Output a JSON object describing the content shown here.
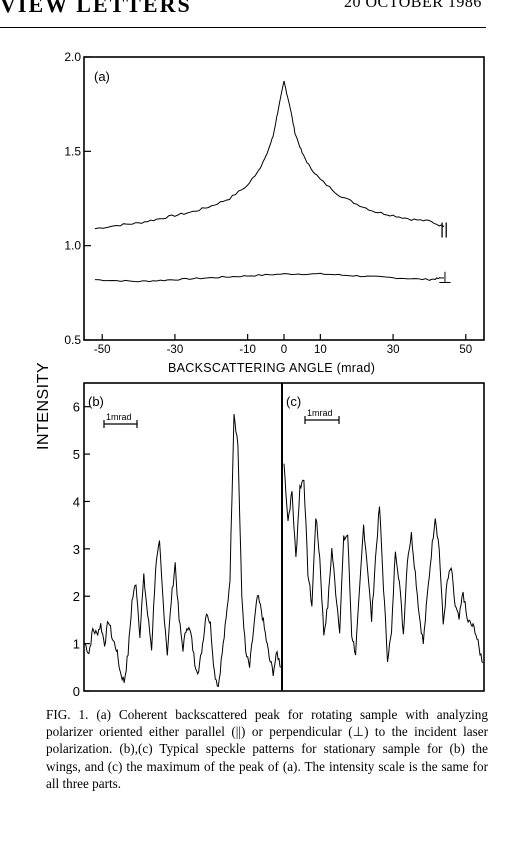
{
  "header": {
    "journal": "VIEW LETTERS",
    "date": "20 OCTOBER 1986"
  },
  "figure": {
    "shared_ylabel": "INTENSITY",
    "caption": "FIG. 1.  (a) Coherent backscattered peak for rotating sample with analyzing polarizer oriented either parallel (||) or perpendicular (⊥) to the incident laser polarization. (b),(c) Typical speckle patterns for stationary sample for (b) the wings, and (c) the maximum of the peak of (a). The intensity scale is the same for all three parts."
  },
  "chart_data": [
    {
      "panel": "(a)",
      "type": "line",
      "xlabel": "BACKSCATTERING  ANGLE (mrad)",
      "ylabel": "INTENSITY",
      "xlim": [
        -55,
        55
      ],
      "ylim": [
        0.5,
        2.0
      ],
      "xticks": [
        -50,
        -30,
        -10,
        0,
        10,
        30,
        50
      ],
      "yticks": [
        "0.5",
        "1.0",
        "1.5",
        "2.0"
      ],
      "series": [
        {
          "name": "||",
          "x": [
            -52,
            -45,
            -40,
            -35,
            -30,
            -25,
            -20,
            -15,
            -10,
            -7,
            -5,
            -3,
            -1.5,
            0,
            1.5,
            3,
            5,
            7,
            10,
            15,
            20,
            25,
            30,
            35,
            40,
            44
          ],
          "y": [
            1.09,
            1.11,
            1.12,
            1.14,
            1.16,
            1.18,
            1.21,
            1.25,
            1.32,
            1.4,
            1.47,
            1.58,
            1.73,
            1.87,
            1.75,
            1.6,
            1.49,
            1.42,
            1.35,
            1.27,
            1.22,
            1.18,
            1.16,
            1.14,
            1.13,
            1.1
          ]
        },
        {
          "name": "⊥",
          "x": [
            -52,
            -40,
            -30,
            -20,
            -10,
            0,
            10,
            20,
            30,
            40,
            44
          ],
          "y": [
            0.82,
            0.81,
            0.82,
            0.83,
            0.84,
            0.85,
            0.85,
            0.84,
            0.83,
            0.82,
            0.83
          ]
        }
      ]
    },
    {
      "panel": "(b)",
      "type": "line",
      "scale_bar": "1mrad",
      "ylim": [
        0,
        6.5
      ],
      "yticks": [
        "0",
        "1",
        "2",
        "3",
        "4",
        "5",
        "6"
      ],
      "series": [
        {
          "name": "",
          "x": [
            0,
            2,
            4,
            6,
            8,
            10,
            12,
            14,
            16,
            18,
            20,
            22,
            24,
            26,
            28,
            30,
            32,
            34,
            36,
            38,
            40,
            42,
            44,
            46,
            48,
            50,
            52,
            54,
            56,
            58,
            60,
            62,
            64,
            66,
            68,
            70,
            72,
            74,
            76,
            78,
            80,
            82,
            84,
            86,
            88,
            90,
            92,
            94,
            96,
            98,
            100
          ],
          "y": [
            1.0,
            0.8,
            1.3,
            1.2,
            1.4,
            1.0,
            1.5,
            1.1,
            0.9,
            0.4,
            0.2,
            0.8,
            1.9,
            2.3,
            1.2,
            2.4,
            1.6,
            0.9,
            2.6,
            3.1,
            1.8,
            0.8,
            1.9,
            2.7,
            1.5,
            0.9,
            1.4,
            1.2,
            0.6,
            0.4,
            1.0,
            1.7,
            1.4,
            0.4,
            0.1,
            0.8,
            1.5,
            2.4,
            5.9,
            5.2,
            2.0,
            0.8,
            0.5,
            1.3,
            2.0,
            1.7,
            1.2,
            0.7,
            0.4,
            0.8,
            0.5
          ]
        }
      ]
    },
    {
      "panel": "(c)",
      "type": "line",
      "scale_bar": "1mrad",
      "ylim": [
        0,
        6.5
      ],
      "series": [
        {
          "name": "",
          "x": [
            0,
            2,
            4,
            6,
            8,
            10,
            12,
            14,
            16,
            18,
            20,
            22,
            24,
            26,
            28,
            30,
            32,
            34,
            36,
            38,
            40,
            42,
            44,
            46,
            48,
            50,
            52,
            54,
            56,
            58,
            60,
            62,
            64,
            66,
            68,
            70,
            72,
            74,
            76,
            78,
            80,
            82,
            84,
            86,
            88,
            90,
            92,
            94,
            96,
            98,
            100
          ],
          "y": [
            4.8,
            3.6,
            4.2,
            2.8,
            4.3,
            4.5,
            2.5,
            1.8,
            3.7,
            2.8,
            1.2,
            1.8,
            3.0,
            2.1,
            1.3,
            3.2,
            3.3,
            1.2,
            0.8,
            2.1,
            3.5,
            2.6,
            1.5,
            2.8,
            3.9,
            2.2,
            0.7,
            1.2,
            3.0,
            2.3,
            1.2,
            2.8,
            3.3,
            2.5,
            1.6,
            1.0,
            2.0,
            2.9,
            3.7,
            3.0,
            1.4,
            2.3,
            2.6,
            1.8,
            1.5,
            2.1,
            1.5,
            1.4,
            1.3,
            0.9,
            0.6
          ]
        }
      ]
    }
  ]
}
